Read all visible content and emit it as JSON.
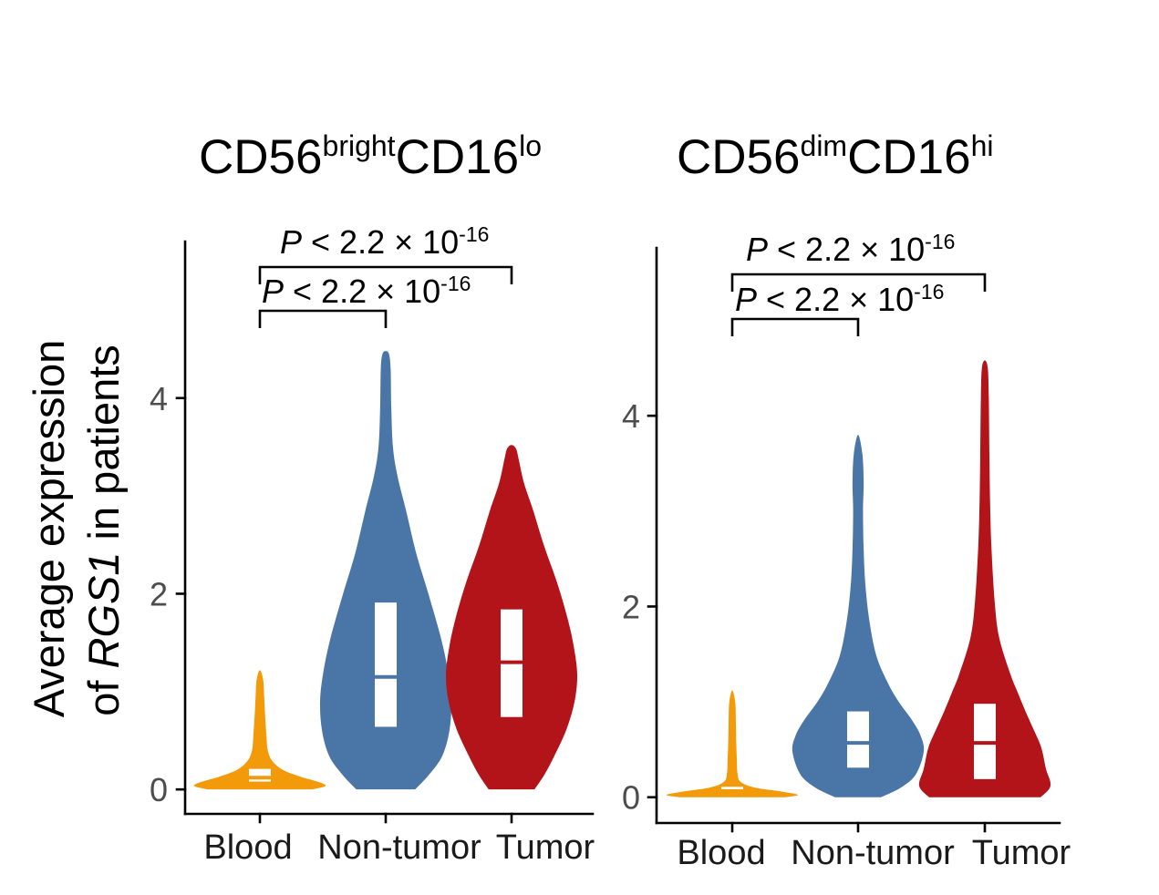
{
  "colors": {
    "box": "#FFFFFF"
  },
  "chart_data": [
    {
      "type": "violin",
      "title": {
        "part1": "CD56",
        "sup1": "bright",
        "part2": "CD16",
        "sup2": "lo"
      },
      "ylabel": {
        "line1": "Average expression",
        "line2_pre": "of ",
        "gene": "RGS1",
        "line2_post": " in patients"
      },
      "categories": [
        "Blood",
        "Non-tumor",
        "Tumor"
      ],
      "yticks": [
        0,
        2,
        4
      ],
      "ylim": [
        -0.25,
        5.6
      ],
      "series": [
        {
          "color": "#F29A0A",
          "q1": 0.08,
          "median": 0.12,
          "q3": 0.21,
          "max": 1.22,
          "density": [
            [
              0,
              0.8
            ],
            [
              0.035,
              1.0
            ],
            [
              0.075,
              0.9
            ],
            [
              0.13,
              0.62
            ],
            [
              0.2,
              0.35
            ],
            [
              0.29,
              0.19
            ],
            [
              0.4,
              0.12
            ],
            [
              0.55,
              0.1
            ],
            [
              0.75,
              0.08
            ],
            [
              0.95,
              0.065
            ],
            [
              1.12,
              0.05
            ],
            [
              1.22,
              0
            ]
          ]
        },
        {
          "color": "#4A76A7",
          "q1": 0.64,
          "median": 1.15,
          "q3": 1.91,
          "max": 4.48,
          "density": [
            [
              0,
              0.45
            ],
            [
              0.15,
              0.66
            ],
            [
              0.34,
              0.86
            ],
            [
              0.6,
              0.97
            ],
            [
              0.9,
              1.0
            ],
            [
              1.2,
              0.95
            ],
            [
              1.55,
              0.84
            ],
            [
              2.0,
              0.65
            ],
            [
              2.4,
              0.47
            ],
            [
              2.85,
              0.31
            ],
            [
              3.2,
              0.18
            ],
            [
              3.5,
              0.11
            ],
            [
              3.9,
              0.085
            ],
            [
              4.3,
              0.075
            ],
            [
              4.45,
              0.05
            ],
            [
              4.48,
              0
            ]
          ]
        },
        {
          "color": "#B31419",
          "q1": 0.74,
          "median": 1.3,
          "q3": 1.84,
          "max": 3.52,
          "density": [
            [
              0,
              0.35
            ],
            [
              0.15,
              0.5
            ],
            [
              0.34,
              0.65
            ],
            [
              0.62,
              0.84
            ],
            [
              0.9,
              0.96
            ],
            [
              1.17,
              1.0
            ],
            [
              1.45,
              0.95
            ],
            [
              1.73,
              0.86
            ],
            [
              2.1,
              0.7
            ],
            [
              2.48,
              0.5
            ],
            [
              2.85,
              0.33
            ],
            [
              3.13,
              0.19
            ],
            [
              3.37,
              0.11
            ],
            [
              3.48,
              0.07
            ],
            [
              3.52,
              0
            ]
          ]
        }
      ],
      "comparisons": [
        {
          "groups": [
            0,
            2
          ],
          "label": {
            "p": "P",
            "text": " < 2.2 × 10",
            "exp": "-16"
          }
        },
        {
          "groups": [
            0,
            1
          ],
          "label": {
            "p": "P",
            "text": " < 2.2 × 10",
            "exp": "-16"
          }
        }
      ]
    },
    {
      "type": "violin",
      "title": {
        "part1": "CD56",
        "sup1": "dim",
        "part2": "CD16",
        "sup2": "hi"
      },
      "categories": [
        "Blood",
        "Non-tumor",
        "Tumor"
      ],
      "yticks": [
        0,
        2,
        4
      ],
      "ylim": [
        -0.27,
        5.76
      ],
      "series": [
        {
          "color": "#F29A0A",
          "q1": 0.06,
          "median": 0.065,
          "q3": 0.11,
          "max": 1.12,
          "density": [
            [
              0,
              0.8
            ],
            [
              0.025,
              1.0
            ],
            [
              0.06,
              0.75
            ],
            [
              0.1,
              0.35
            ],
            [
              0.16,
              0.13
            ],
            [
              0.25,
              0.08
            ],
            [
              0.4,
              0.07
            ],
            [
              0.6,
              0.06
            ],
            [
              0.8,
              0.055
            ],
            [
              1.0,
              0.045
            ],
            [
              1.12,
              0
            ]
          ]
        },
        {
          "color": "#4A76A7",
          "q1": 0.31,
          "median": 0.57,
          "q3": 0.9,
          "max": 3.8,
          "density": [
            [
              0,
              0.35
            ],
            [
              0.1,
              0.65
            ],
            [
              0.24,
              0.88
            ],
            [
              0.48,
              1.0
            ],
            [
              0.65,
              0.95
            ],
            [
              0.81,
              0.82
            ],
            [
              1.0,
              0.62
            ],
            [
              1.19,
              0.46
            ],
            [
              1.48,
              0.28
            ],
            [
              1.86,
              0.17
            ],
            [
              2.24,
              0.11
            ],
            [
              2.6,
              0.085
            ],
            [
              3.0,
              0.075
            ],
            [
              3.3,
              0.085
            ],
            [
              3.6,
              0.065
            ],
            [
              3.8,
              0
            ]
          ]
        },
        {
          "color": "#B31419",
          "q1": 0.19,
          "median": 0.57,
          "q3": 0.98,
          "max": 4.58,
          "density": [
            [
              0,
              0.85
            ],
            [
              0.12,
              1.0
            ],
            [
              0.3,
              0.93
            ],
            [
              0.52,
              0.86
            ],
            [
              0.7,
              0.75
            ],
            [
              0.9,
              0.62
            ],
            [
              1.1,
              0.5
            ],
            [
              1.29,
              0.39
            ],
            [
              1.67,
              0.22
            ],
            [
              2.05,
              0.15
            ],
            [
              2.63,
              0.1
            ],
            [
              3.1,
              0.08
            ],
            [
              3.58,
              0.07
            ],
            [
              4.2,
              0.06
            ],
            [
              4.5,
              0.045
            ],
            [
              4.58,
              0
            ]
          ]
        }
      ],
      "comparisons": [
        {
          "groups": [
            0,
            2
          ],
          "label": {
            "p": "P",
            "text": " < 2.2 × 10",
            "exp": "-16"
          }
        },
        {
          "groups": [
            0,
            1
          ],
          "label": {
            "p": "P",
            "text": " < 2.2 × 10",
            "exp": "-16"
          }
        }
      ]
    }
  ]
}
